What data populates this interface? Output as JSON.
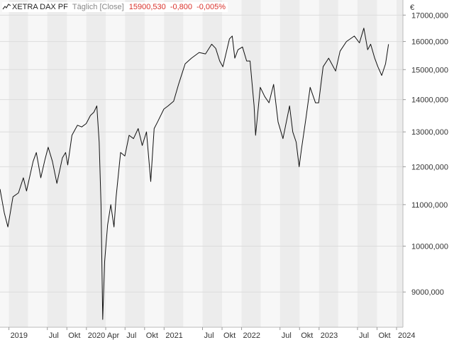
{
  "header": {
    "instrument": "XETRA DAX PF",
    "interval": "Täglich [Close]",
    "last": "15900,530",
    "change": "-0,800",
    "change_pct": "-0,005%",
    "currency": "€",
    "colors": {
      "negative": "#d9322b",
      "muted": "#888888"
    }
  },
  "chart_data": {
    "type": "line",
    "title": "XETRA DAX PF",
    "ylabel": "€",
    "scale": "log",
    "ylim": [
      8300,
      17600
    ],
    "grid": true,
    "yticks": [
      {
        "value": 9000,
        "label": "9000,000"
      },
      {
        "value": 10000,
        "label": "10000,000"
      },
      {
        "value": 11000,
        "label": "11000,000"
      },
      {
        "value": 12000,
        "label": "12000,000"
      },
      {
        "value": 13000,
        "label": "13000,000"
      },
      {
        "value": 14000,
        "label": "14000,000"
      },
      {
        "value": 15000,
        "label": "15000,000"
      },
      {
        "value": 16000,
        "label": "16000,000"
      },
      {
        "value": 17000,
        "label": "17000,000"
      }
    ],
    "xlim": [
      "2018-11-20",
      "2024-01-31"
    ],
    "xticks": [
      {
        "date": "2019-01-01",
        "label": "2019"
      },
      {
        "date": "2019-07-01",
        "label": "Jul"
      },
      {
        "date": "2019-10-01",
        "label": "Okt"
      },
      {
        "date": "2020-01-01",
        "label": "2020"
      },
      {
        "date": "2020-04-01",
        "label": "Apr"
      },
      {
        "date": "2020-07-01",
        "label": "Jul"
      },
      {
        "date": "2020-10-01",
        "label": "Okt"
      },
      {
        "date": "2021-01-01",
        "label": "2021"
      },
      {
        "date": "2021-07-01",
        "label": "Jul"
      },
      {
        "date": "2021-10-01",
        "label": "Okt"
      },
      {
        "date": "2022-01-01",
        "label": "2022"
      },
      {
        "date": "2022-07-01",
        "label": "Jul"
      },
      {
        "date": "2022-10-01",
        "label": "Okt"
      },
      {
        "date": "2023-01-01",
        "label": "2023"
      },
      {
        "date": "2023-07-01",
        "label": "Jul"
      },
      {
        "date": "2023-10-01",
        "label": "Okt"
      },
      {
        "date": "2024-01-01",
        "label": "2024"
      }
    ],
    "series": [
      {
        "name": "XETRA DAX PF",
        "color": "#111111",
        "x": [
          "2018-11-20",
          "2018-12-10",
          "2018-12-27",
          "2019-01-20",
          "2019-02-15",
          "2019-03-10",
          "2019-03-25",
          "2019-04-25",
          "2019-05-10",
          "2019-05-31",
          "2019-06-20",
          "2019-07-05",
          "2019-07-25",
          "2019-08-15",
          "2019-09-10",
          "2019-09-25",
          "2019-10-05",
          "2019-10-25",
          "2019-11-20",
          "2019-12-10",
          "2019-12-31",
          "2020-01-20",
          "2020-02-05",
          "2020-02-19",
          "2020-03-01",
          "2020-03-10",
          "2020-03-18",
          "2020-03-27",
          "2020-04-10",
          "2020-04-25",
          "2020-05-10",
          "2020-05-20",
          "2020-06-10",
          "2020-06-30",
          "2020-07-20",
          "2020-08-10",
          "2020-09-01",
          "2020-09-20",
          "2020-10-10",
          "2020-10-30",
          "2020-11-15",
          "2020-12-01",
          "2020-12-31",
          "2021-01-20",
          "2021-02-15",
          "2021-03-10",
          "2021-04-10",
          "2021-05-10",
          "2021-06-15",
          "2021-07-15",
          "2021-08-13",
          "2021-09-01",
          "2021-09-20",
          "2021-10-05",
          "2021-11-05",
          "2021-11-18",
          "2021-11-30",
          "2021-12-15",
          "2022-01-05",
          "2022-01-25",
          "2022-02-10",
          "2022-03-01",
          "2022-03-08",
          "2022-03-30",
          "2022-04-20",
          "2022-05-10",
          "2022-06-01",
          "2022-06-22",
          "2022-07-15",
          "2022-08-15",
          "2022-08-30",
          "2022-09-15",
          "2022-09-29",
          "2022-10-10",
          "2022-10-31",
          "2022-11-20",
          "2022-12-15",
          "2022-12-30",
          "2023-01-20",
          "2023-02-15",
          "2023-03-20",
          "2023-04-10",
          "2023-05-10",
          "2023-06-16",
          "2023-07-10",
          "2023-07-31",
          "2023-08-18",
          "2023-09-01",
          "2023-09-20",
          "2023-10-05",
          "2023-10-23",
          "2023-11-10",
          "2023-11-24"
        ],
        "y": [
          11400,
          10800,
          10450,
          11200,
          11300,
          11700,
          11350,
          12150,
          12400,
          11700,
          12200,
          12550,
          12150,
          11550,
          12250,
          12400,
          12050,
          12900,
          13200,
          13150,
          13250,
          13500,
          13600,
          13800,
          12700,
          11000,
          8450,
          9650,
          10500,
          11000,
          10450,
          11200,
          12400,
          12300,
          12900,
          12800,
          13100,
          12600,
          13000,
          11600,
          13100,
          13300,
          13700,
          13800,
          13950,
          14500,
          15200,
          15400,
          15600,
          15550,
          15900,
          15750,
          15300,
          15100,
          16100,
          16200,
          15400,
          15700,
          15800,
          15300,
          15300,
          13800,
          12900,
          14400,
          14100,
          13900,
          14500,
          13300,
          12800,
          13800,
          13000,
          12700,
          12000,
          12500,
          13400,
          14400,
          13900,
          13900,
          15100,
          15400,
          14950,
          15650,
          16000,
          16200,
          15950,
          16500,
          15700,
          15900,
          15400,
          15100,
          14800,
          15200,
          15900
        ]
      }
    ]
  }
}
